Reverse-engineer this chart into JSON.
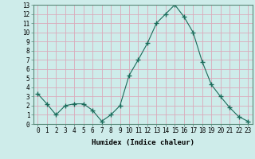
{
  "x": [
    0,
    1,
    2,
    3,
    4,
    5,
    6,
    7,
    8,
    9,
    10,
    11,
    12,
    13,
    14,
    15,
    16,
    17,
    18,
    19,
    20,
    21,
    22,
    23
  ],
  "y": [
    3.3,
    2.2,
    1.0,
    2.0,
    2.2,
    2.2,
    1.5,
    0.3,
    1.0,
    2.0,
    5.3,
    7.0,
    8.8,
    11.0,
    12.0,
    13.0,
    11.7,
    10.0,
    6.8,
    4.3,
    3.0,
    1.8,
    0.8,
    0.3
  ],
  "line_color": "#1a6b5a",
  "marker": "+",
  "marker_size": 4,
  "bg_color": "#ceecea",
  "grid_color": "#dbaabb",
  "xlabel": "Humidex (Indice chaleur)",
  "xlim": [
    -0.5,
    23.5
  ],
  "ylim": [
    0,
    13
  ],
  "yticks": [
    0,
    1,
    2,
    3,
    4,
    5,
    6,
    7,
    8,
    9,
    10,
    11,
    12,
    13
  ],
  "xticks": [
    0,
    1,
    2,
    3,
    4,
    5,
    6,
    7,
    8,
    9,
    10,
    11,
    12,
    13,
    14,
    15,
    16,
    17,
    18,
    19,
    20,
    21,
    22,
    23
  ],
  "tick_fontsize": 5.5,
  "label_fontsize": 6.5
}
